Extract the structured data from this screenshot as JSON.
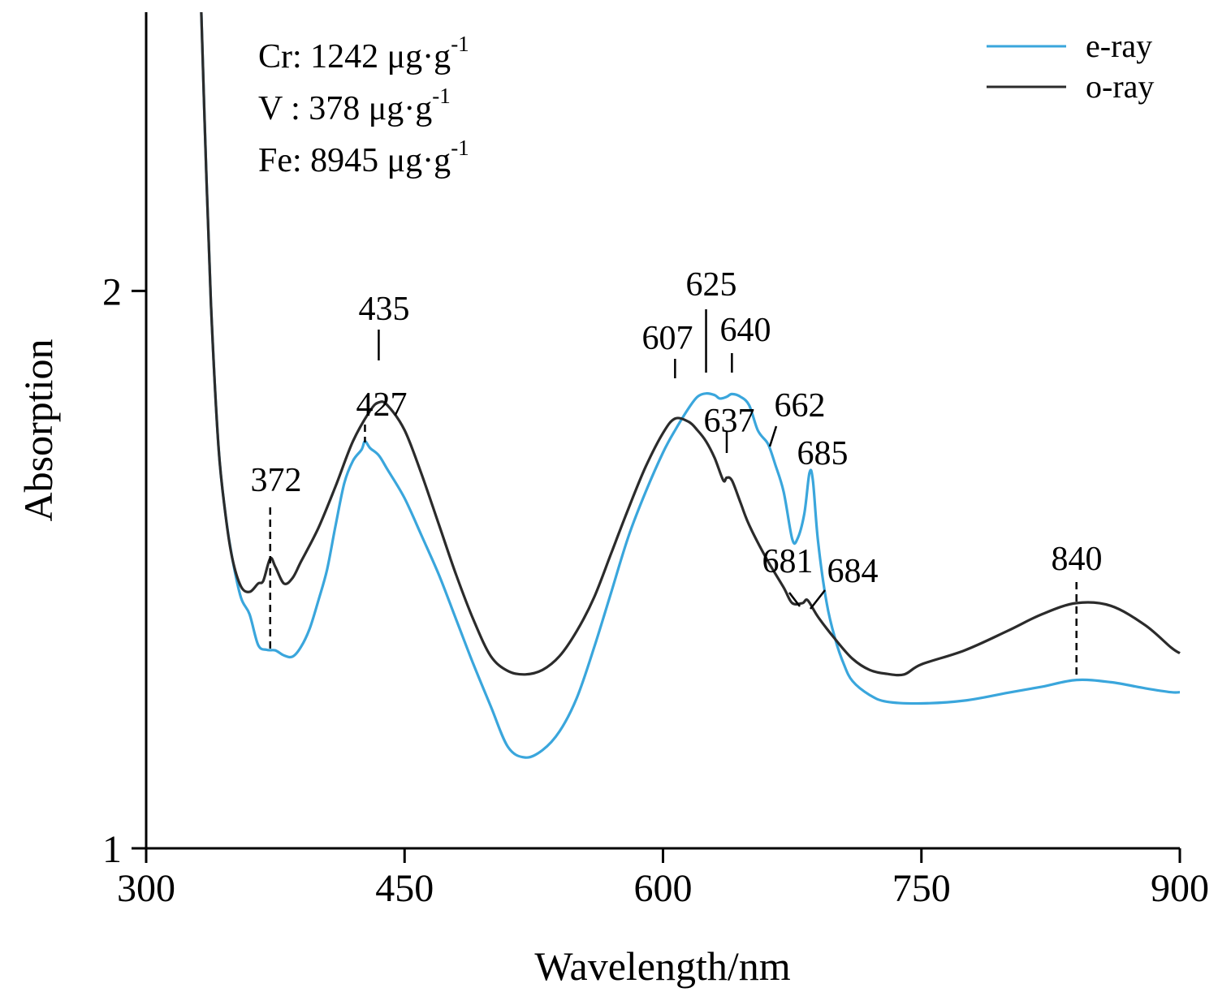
{
  "chart_data": {
    "type": "line",
    "xlabel": "Wavelength/nm",
    "ylabel": "Absorption",
    "xlim": [
      300,
      900
    ],
    "ylim": [
      1,
      2.5
    ],
    "x_ticks": [
      300,
      450,
      600,
      750,
      900
    ],
    "x_tick_labels": [
      "300",
      "450",
      "600",
      "750",
      "900"
    ],
    "y_ticks": [
      1,
      2
    ],
    "y_tick_labels": [
      "1",
      "2"
    ],
    "grid": false,
    "legend_position": "top-right",
    "composition": [
      {
        "text": "Cr: 1242 μg·g",
        "sup": "-1"
      },
      {
        "text": "V : 378 μg·g",
        "sup": "-1"
      },
      {
        "text": "Fe: 8945 μg·g",
        "sup": "-1"
      }
    ],
    "series": [
      {
        "name": "e-ray",
        "color": "#3aa6dc",
        "points": [
          [
            332,
            2.5
          ],
          [
            335,
            2.2
          ],
          [
            338,
            1.95
          ],
          [
            342,
            1.72
          ],
          [
            346,
            1.6
          ],
          [
            350,
            1.52
          ],
          [
            355,
            1.45
          ],
          [
            360,
            1.42
          ],
          [
            365,
            1.365
          ],
          [
            370,
            1.356
          ],
          [
            375,
            1.355
          ],
          [
            380,
            1.346
          ],
          [
            385,
            1.344
          ],
          [
            390,
            1.362
          ],
          [
            395,
            1.395
          ],
          [
            400,
            1.445
          ],
          [
            405,
            1.5
          ],
          [
            410,
            1.58
          ],
          [
            415,
            1.655
          ],
          [
            420,
            1.695
          ],
          [
            425,
            1.715
          ],
          [
            427,
            1.73
          ],
          [
            430,
            1.718
          ],
          [
            435,
            1.705
          ],
          [
            440,
            1.68
          ],
          [
            450,
            1.628
          ],
          [
            460,
            1.56
          ],
          [
            470,
            1.49
          ],
          [
            480,
            1.41
          ],
          [
            490,
            1.33
          ],
          [
            500,
            1.255
          ],
          [
            510,
            1.182
          ],
          [
            520,
            1.163
          ],
          [
            530,
            1.176
          ],
          [
            540,
            1.21
          ],
          [
            550,
            1.27
          ],
          [
            560,
            1.36
          ],
          [
            570,
            1.46
          ],
          [
            580,
            1.56
          ],
          [
            590,
            1.64
          ],
          [
            600,
            1.71
          ],
          [
            607,
            1.75
          ],
          [
            615,
            1.79
          ],
          [
            620,
            1.81
          ],
          [
            625,
            1.816
          ],
          [
            630,
            1.813
          ],
          [
            633,
            1.807
          ],
          [
            637,
            1.81
          ],
          [
            640,
            1.815
          ],
          [
            645,
            1.81
          ],
          [
            650,
            1.795
          ],
          [
            655,
            1.75
          ],
          [
            660,
            1.73
          ],
          [
            662,
            1.718
          ],
          [
            665,
            1.69
          ],
          [
            670,
            1.64
          ],
          [
            675,
            1.555
          ],
          [
            678,
            1.555
          ],
          [
            682,
            1.6
          ],
          [
            685,
            1.673
          ],
          [
            687,
            1.66
          ],
          [
            690,
            1.55
          ],
          [
            695,
            1.44
          ],
          [
            700,
            1.375
          ],
          [
            705,
            1.33
          ],
          [
            710,
            1.3
          ],
          [
            720,
            1.275
          ],
          [
            730,
            1.263
          ],
          [
            750,
            1.26
          ],
          [
            775,
            1.265
          ],
          [
            800,
            1.279
          ],
          [
            820,
            1.29
          ],
          [
            840,
            1.302
          ],
          [
            860,
            1.298
          ],
          [
            880,
            1.287
          ],
          [
            895,
            1.28
          ],
          [
            900,
            1.28
          ]
        ]
      },
      {
        "name": "o-ray",
        "color": "#2b2b2b",
        "points": [
          [
            332,
            2.5
          ],
          [
            335,
            2.2
          ],
          [
            338,
            1.95
          ],
          [
            342,
            1.72
          ],
          [
            346,
            1.6
          ],
          [
            350,
            1.52
          ],
          [
            355,
            1.47
          ],
          [
            360,
            1.46
          ],
          [
            365,
            1.475
          ],
          [
            368,
            1.48
          ],
          [
            372,
            1.52
          ],
          [
            375,
            1.505
          ],
          [
            380,
            1.475
          ],
          [
            385,
            1.485
          ],
          [
            390,
            1.515
          ],
          [
            400,
            1.575
          ],
          [
            410,
            1.65
          ],
          [
            420,
            1.73
          ],
          [
            430,
            1.785
          ],
          [
            435,
            1.8
          ],
          [
            440,
            1.795
          ],
          [
            450,
            1.75
          ],
          [
            460,
            1.67
          ],
          [
            470,
            1.58
          ],
          [
            480,
            1.49
          ],
          [
            490,
            1.41
          ],
          [
            500,
            1.345
          ],
          [
            510,
            1.318
          ],
          [
            520,
            1.312
          ],
          [
            530,
            1.32
          ],
          [
            540,
            1.345
          ],
          [
            550,
            1.39
          ],
          [
            560,
            1.45
          ],
          [
            570,
            1.53
          ],
          [
            580,
            1.61
          ],
          [
            590,
            1.685
          ],
          [
            600,
            1.745
          ],
          [
            607,
            1.771
          ],
          [
            615,
            1.765
          ],
          [
            620,
            1.75
          ],
          [
            625,
            1.73
          ],
          [
            630,
            1.7
          ],
          [
            635,
            1.66
          ],
          [
            637,
            1.665
          ],
          [
            640,
            1.66
          ],
          [
            645,
            1.62
          ],
          [
            650,
            1.58
          ],
          [
            660,
            1.52
          ],
          [
            670,
            1.468
          ],
          [
            675,
            1.44
          ],
          [
            681,
            1.44
          ],
          [
            684,
            1.445
          ],
          [
            690,
            1.415
          ],
          [
            700,
            1.375
          ],
          [
            710,
            1.34
          ],
          [
            720,
            1.32
          ],
          [
            730,
            1.313
          ],
          [
            740,
            1.312
          ],
          [
            750,
            1.33
          ],
          [
            775,
            1.355
          ],
          [
            800,
            1.39
          ],
          [
            820,
            1.42
          ],
          [
            840,
            1.44
          ],
          [
            860,
            1.435
          ],
          [
            880,
            1.4
          ],
          [
            895,
            1.36
          ],
          [
            900,
            1.35
          ]
        ]
      }
    ],
    "annotations": [
      {
        "label": "372",
        "series": "o-ray",
        "x": 372,
        "style": "dashed"
      },
      {
        "label": "427",
        "series": "e-ray",
        "x": 427,
        "style": "dashed"
      },
      {
        "label": "435",
        "series": "o-ray",
        "x": 435,
        "style": "solid"
      },
      {
        "label": "607",
        "series": "o-ray",
        "x": 607,
        "style": "solid"
      },
      {
        "label": "625",
        "series": "e-ray",
        "x": 625,
        "style": "solid"
      },
      {
        "label": "640",
        "series": "e-ray",
        "x": 640,
        "style": "solid"
      },
      {
        "label": "637",
        "series": "o-ray",
        "x": 637,
        "style": "solid"
      },
      {
        "label": "662",
        "series": "e-ray",
        "x": 662,
        "style": "solid"
      },
      {
        "label": "685",
        "series": "e-ray",
        "x": 685,
        "style": "none"
      },
      {
        "label": "681",
        "series": "o-ray",
        "x": 681,
        "style": "solid"
      },
      {
        "label": "684",
        "series": "o-ray",
        "x": 684,
        "style": "solid"
      },
      {
        "label": "840",
        "series": "e-ray",
        "x": 840,
        "style": "dashed"
      }
    ]
  }
}
